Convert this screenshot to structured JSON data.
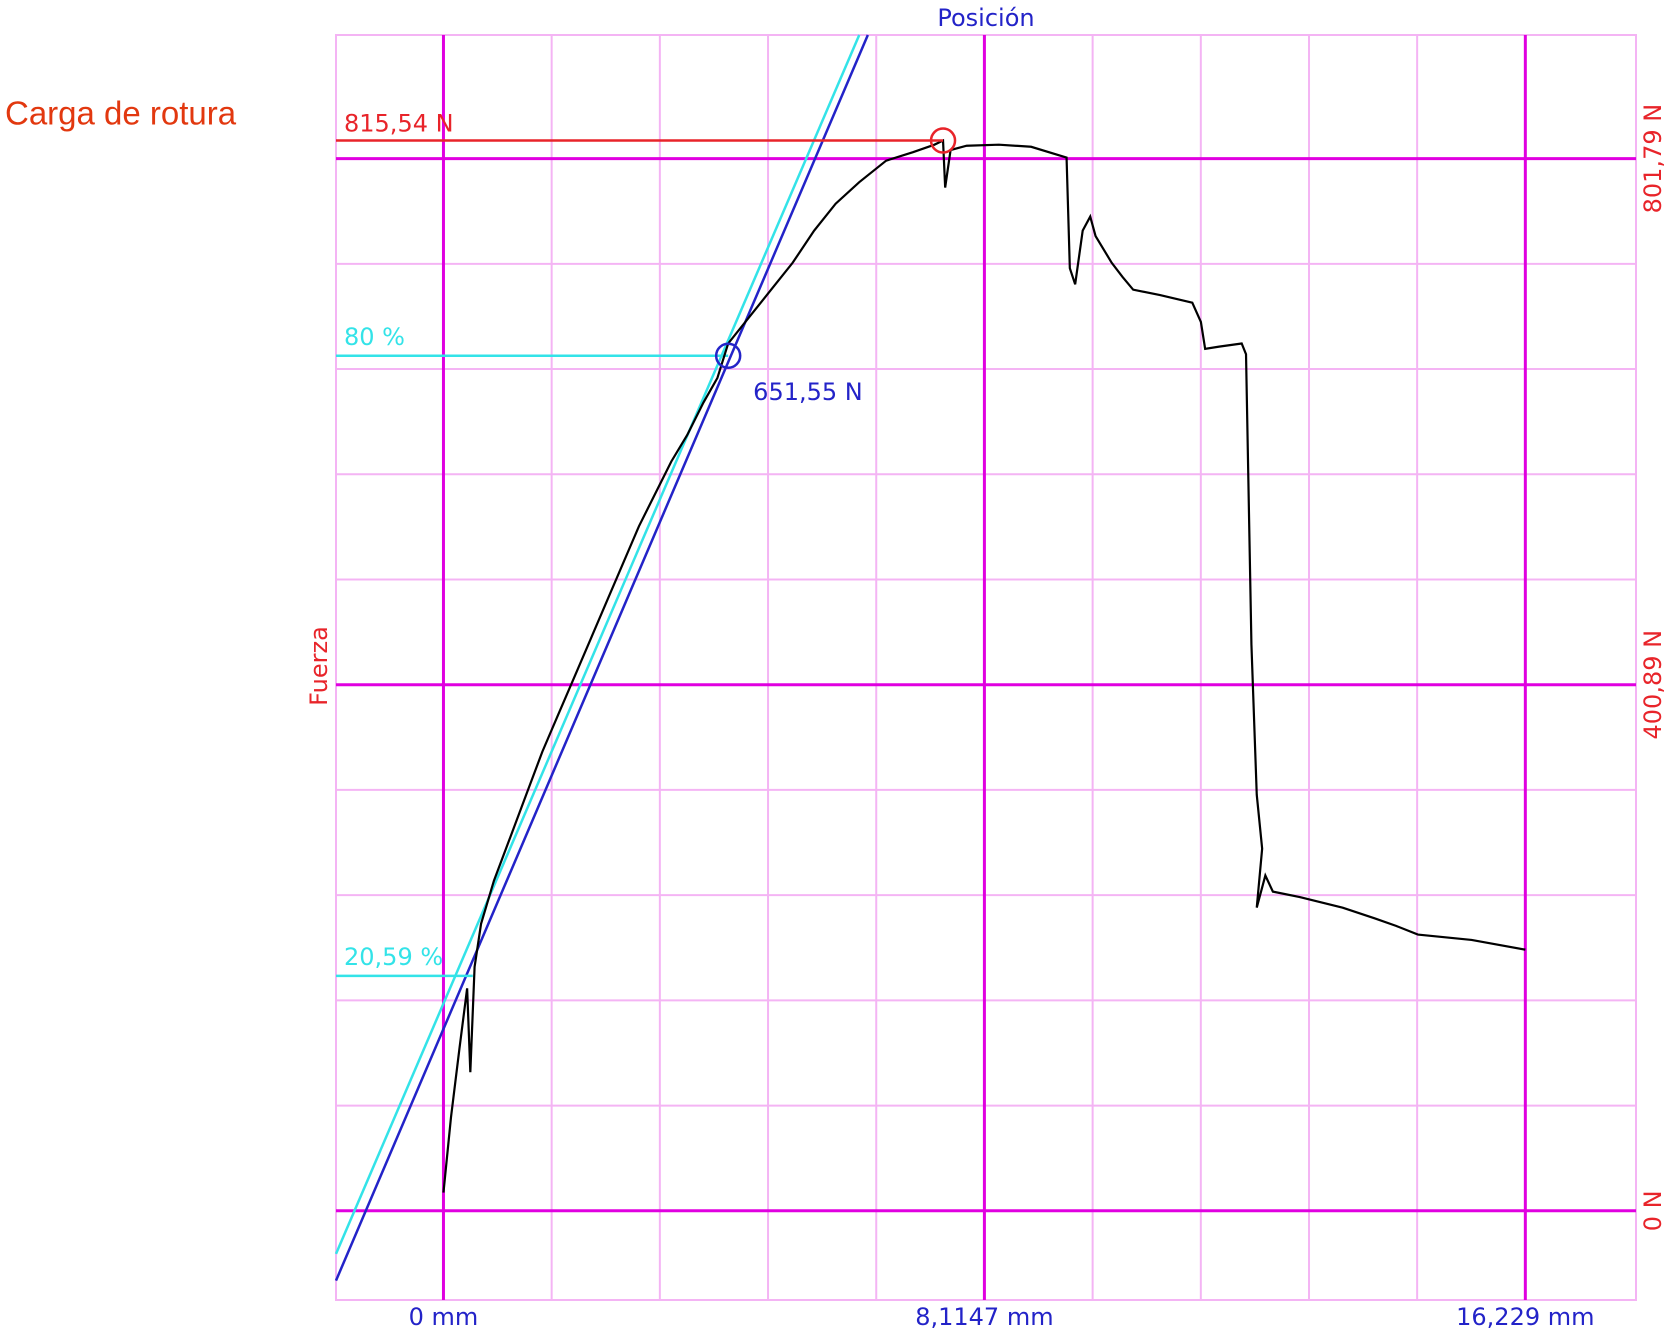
{
  "chart_data": {
    "type": "line",
    "title": "Carga de rotura",
    "x_label": "Posición",
    "y_label": "Fuerza",
    "xlim": [
      -1.612,
      17.889
    ],
    "ylim": [
      -67.98,
      895.97
    ],
    "xticks": [
      {
        "value": 0,
        "label": "0 mm"
      },
      {
        "value": 8.1147,
        "label": "8,1147 mm"
      },
      {
        "value": 16.229,
        "label": "16,229 mm"
      }
    ],
    "yticks": [
      {
        "value": 0,
        "label": "0 N"
      },
      {
        "value": 400.89,
        "label": "400,89 N"
      },
      {
        "value": 801.79,
        "label": "801,79 N"
      }
    ],
    "xminorticks": [
      1.623,
      3.246,
      4.869,
      6.492,
      9.738,
      11.361,
      12.984,
      14.606
    ],
    "yminorticks": [
      80.18,
      160.36,
      240.54,
      320.71,
      481.07,
      561.25,
      641.43,
      721.61
    ],
    "grid": true,
    "series": [
      {
        "color": "#000000",
        "x": [
          0,
          0.113,
          0.242,
          0.355,
          0.403,
          0.467,
          0.564,
          0.757,
          0.999,
          1.241,
          1.483,
          1.724,
          1.966,
          2.208,
          2.45,
          2.691,
          2.933,
          3.175,
          3.417,
          3.658,
          3.9,
          4.11,
          4.271,
          4.593,
          4.915,
          5.238,
          5.56,
          5.883,
          6.237,
          6.64,
          7.043,
          7.365,
          7.494,
          7.526,
          7.607,
          7.848,
          8.332,
          8.815,
          9.347,
          9.396,
          9.476,
          9.589,
          9.702,
          9.782,
          10.024,
          10.185,
          10.346,
          10.749,
          11.233,
          11.362,
          11.426,
          11.636,
          11.974,
          12.039,
          12.12,
          12.2,
          12.281,
          12.2,
          12.329,
          12.442,
          12.845,
          13.489,
          13.973,
          14.295,
          14.617,
          15.423,
          16.229
        ],
        "values": [
          13.9,
          71.3,
          124.5,
          169.5,
          105.6,
          185.9,
          218.7,
          251.5,
          284.2,
          317.0,
          349.8,
          378.4,
          407.0,
          435.7,
          464.4,
          493.0,
          521.7,
          546.3,
          570.9,
          591.3,
          615.9,
          634.7,
          660.9,
          681.4,
          701.9,
          722.4,
          746.9,
          767.4,
          783.8,
          800.2,
          806.7,
          812.4,
          815.54,
          779.7,
          808.3,
          811.6,
          812.4,
          810.8,
          802.6,
          718.3,
          706.0,
          746.9,
          757.6,
          742.8,
          722.4,
          711.7,
          701.9,
          697.8,
          692.0,
          677.3,
          656.8,
          658.5,
          660.9,
          652.7,
          431.6,
          317.0,
          276.0,
          231.0,
          255.5,
          243.2,
          239.1,
          231.0,
          222.8,
          217.0,
          210.5,
          206.4,
          199.0
        ]
      }
    ],
    "reference_lines": [
      {
        "color": "#33e3e8",
        "x": [
          -1.612,
          6.237
        ],
        "y": [
          -32.8,
          895.97
        ]
      },
      {
        "color": "#2323c8",
        "x": [
          -1.612,
          6.366
        ],
        "y": [
          -53.2,
          895.97
        ]
      }
    ],
    "markers": [
      {
        "label": "815,54 N",
        "value": 815.54,
        "x": 7.494,
        "color": "#e8242a",
        "label_side": "left"
      },
      {
        "label": "651,55 N",
        "value": 651.55,
        "x": 4.271,
        "color": "#2323c8",
        "label_side": "below"
      }
    ],
    "levels": [
      {
        "label": "80 %",
        "value": 80,
        "y": 651.55,
        "x": 4.271,
        "color": "#33e3e8"
      },
      {
        "label": "20,59 %",
        "value": 20.59,
        "y": 179,
        "x": 0.44,
        "color": "#33e3e8"
      }
    ],
    "axis_label_color": "#e8242a",
    "x_label_color": "#2323c8",
    "grid_color": "#e000e0",
    "minor_grid_color": "#f4b4f4"
  }
}
